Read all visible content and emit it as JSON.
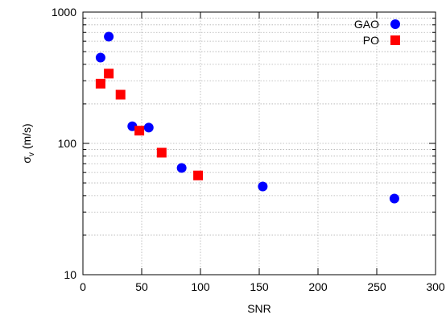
{
  "chart_data": {
    "type": "scatter",
    "xlabel": "SNR",
    "ylabel": "σ",
    "ylabel_sub": "v",
    "ylabel_unit": " (m/s)",
    "xlim": [
      0,
      300
    ],
    "ylim": [
      10,
      1000
    ],
    "yscale": "log",
    "grid": true,
    "legend_position": "top-right",
    "x_ticks": [
      "0",
      "50",
      "100",
      "150",
      "200",
      "250",
      "300"
    ],
    "y_ticks": [
      "10",
      "100",
      "1000"
    ],
    "series": [
      {
        "name": "GAO",
        "marker": "circle",
        "color": "#0000ff",
        "points": [
          {
            "x": 15,
            "y": 450
          },
          {
            "x": 22,
            "y": 650
          },
          {
            "x": 42,
            "y": 135
          },
          {
            "x": 56,
            "y": 132
          },
          {
            "x": 84,
            "y": 65
          },
          {
            "x": 153,
            "y": 47
          },
          {
            "x": 265,
            "y": 38
          }
        ]
      },
      {
        "name": "PO",
        "marker": "square",
        "color": "#ff0000",
        "points": [
          {
            "x": 15,
            "y": 285
          },
          {
            "x": 22,
            "y": 340
          },
          {
            "x": 32,
            "y": 235
          },
          {
            "x": 48,
            "y": 125
          },
          {
            "x": 67,
            "y": 85
          },
          {
            "x": 98,
            "y": 57
          }
        ]
      }
    ]
  }
}
